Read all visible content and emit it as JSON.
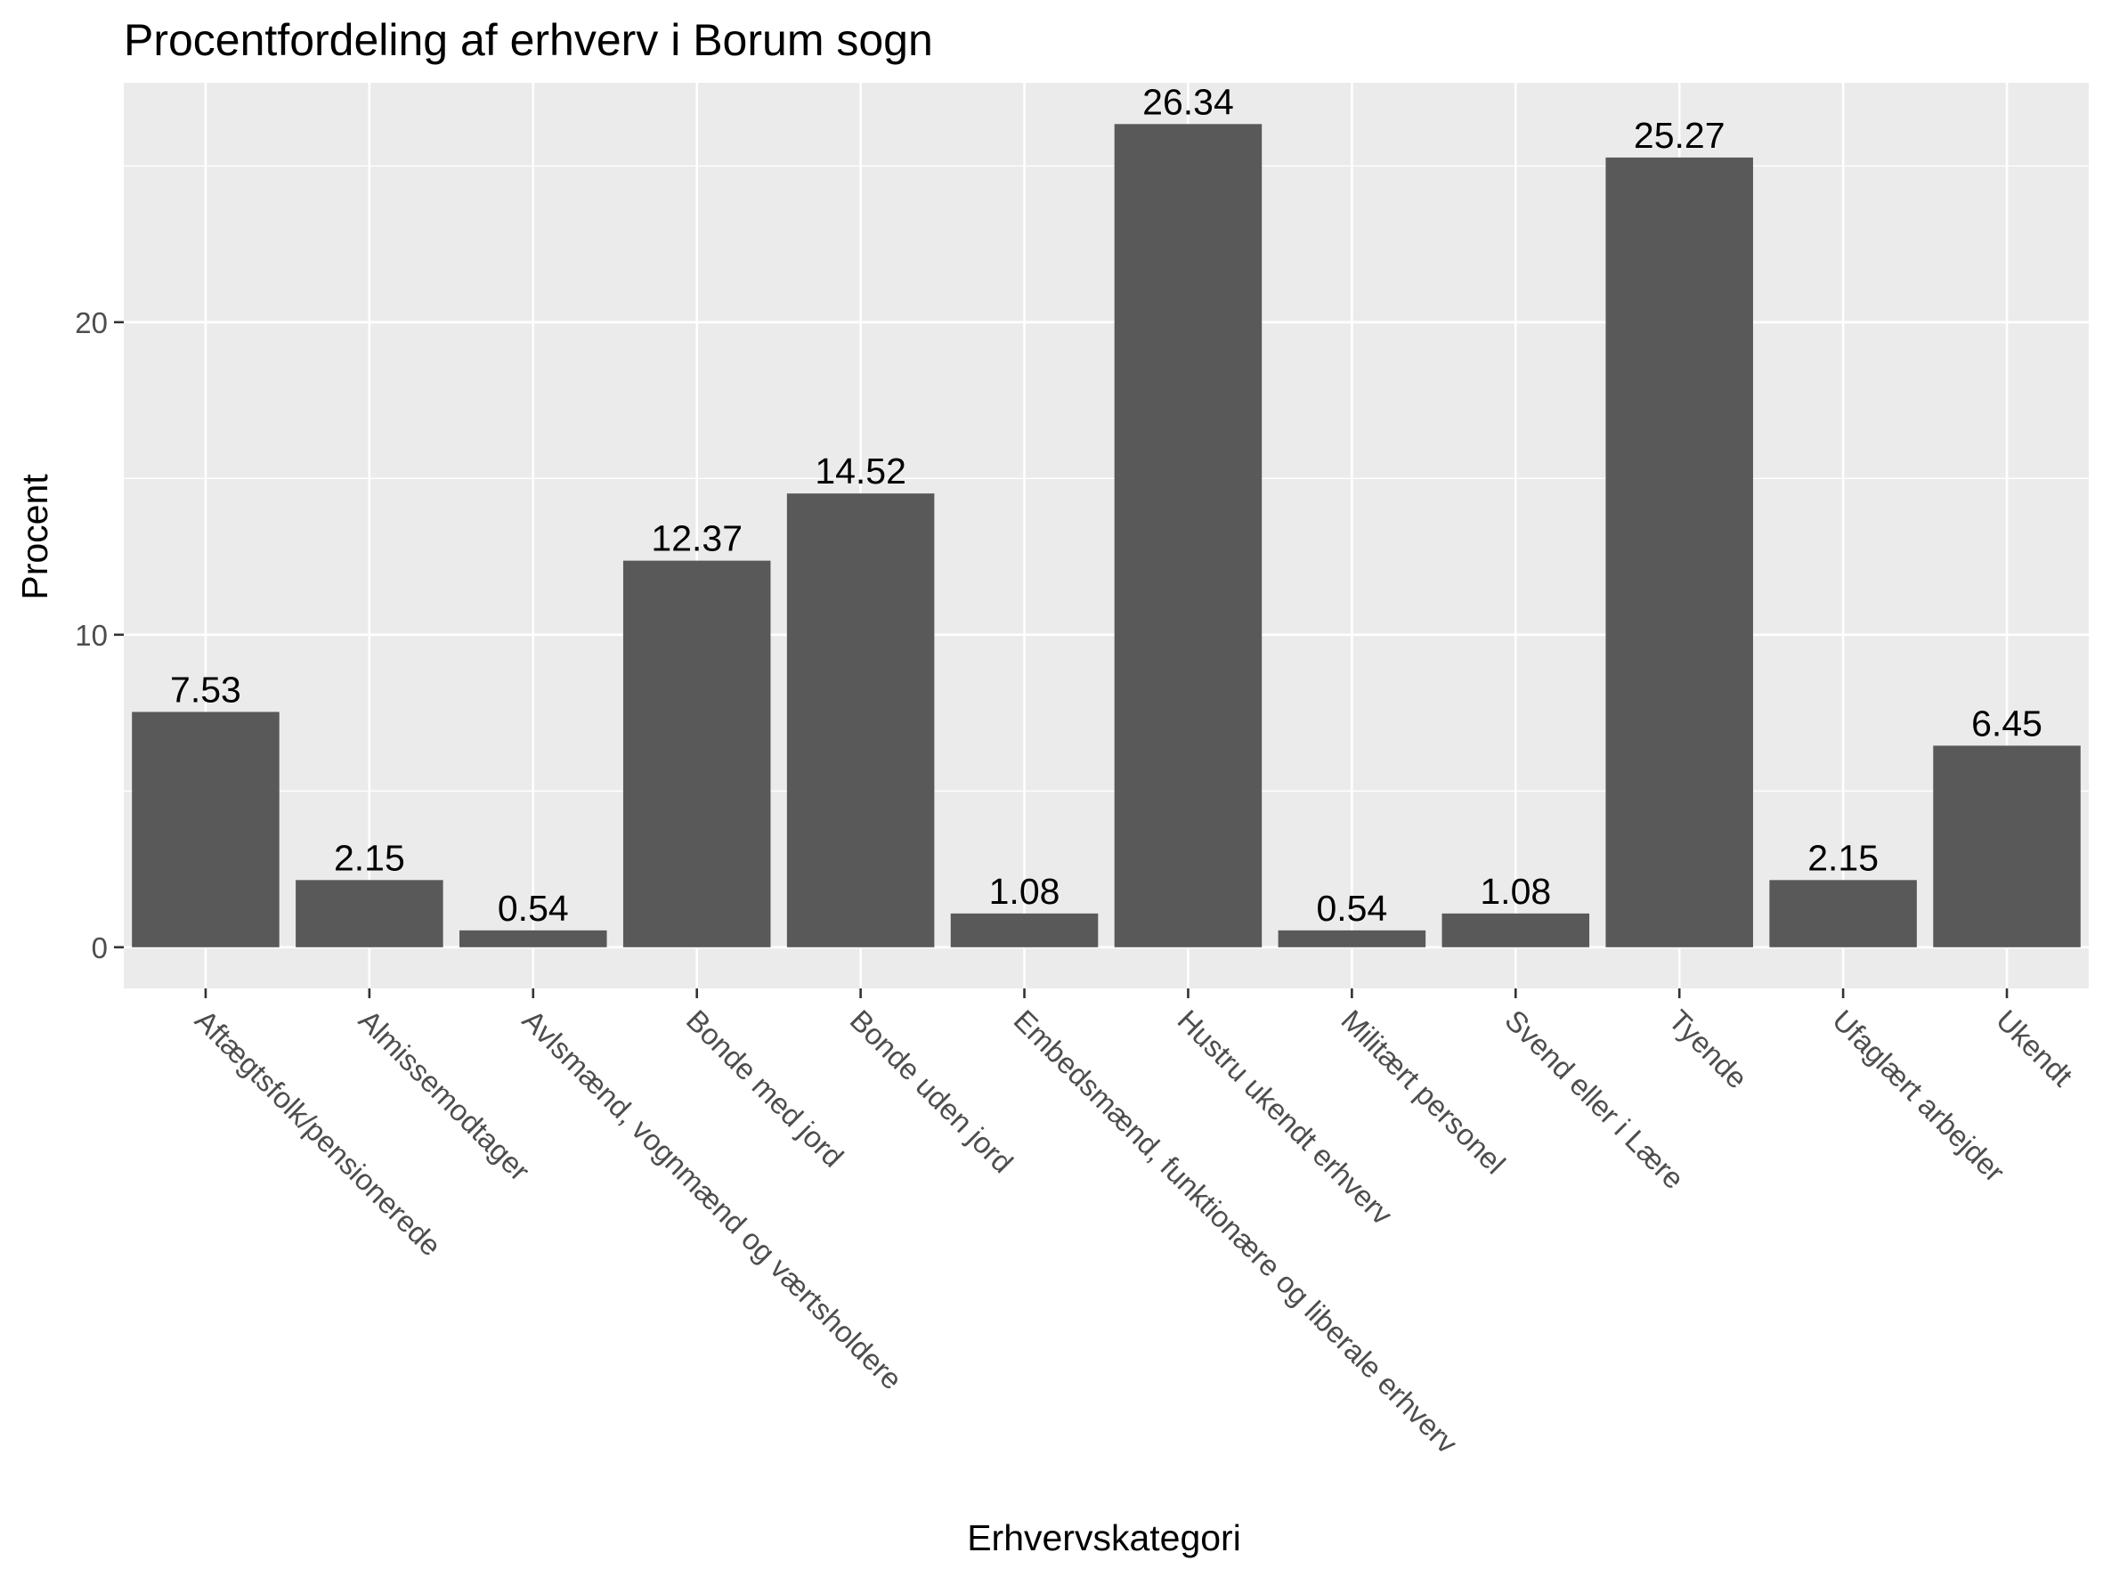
{
  "chart_data": {
    "type": "bar",
    "title": "Procentfordeling af erhverv i Borum sogn",
    "xlabel": "Erhvervskategori",
    "ylabel": "Procent",
    "categories": [
      "Aftægtsfolk/pensionerede",
      "Almissemodtager",
      "Avlsmænd, vognmænd og værtsholdere",
      "Bonde med jord",
      "Bonde uden jord",
      "Embedsmænd, funktionære og liberale erhverv",
      "Hustru ukendt erhverv",
      "Militært personel",
      "Svend eller i Lære",
      "Tyende",
      "Ufaglært arbejder",
      "Ukendt"
    ],
    "values": [
      7.53,
      2.15,
      0.54,
      12.37,
      14.52,
      1.08,
      26.34,
      0.54,
      1.08,
      25.27,
      2.15,
      6.45
    ],
    "value_labels": [
      "7.53",
      "2.15",
      "0.54",
      "12.37",
      "14.52",
      "1.08",
      "26.34",
      "0.54",
      "1.08",
      "25.27",
      "2.15",
      "6.45"
    ],
    "yticks": [
      0,
      10,
      20
    ],
    "ytick_labels": [
      "0",
      "10",
      "20"
    ],
    "ylim": [
      -1.317,
      27.66
    ],
    "grid": true,
    "bar_color": "#595959",
    "panel_color": "#ebebeb"
  }
}
